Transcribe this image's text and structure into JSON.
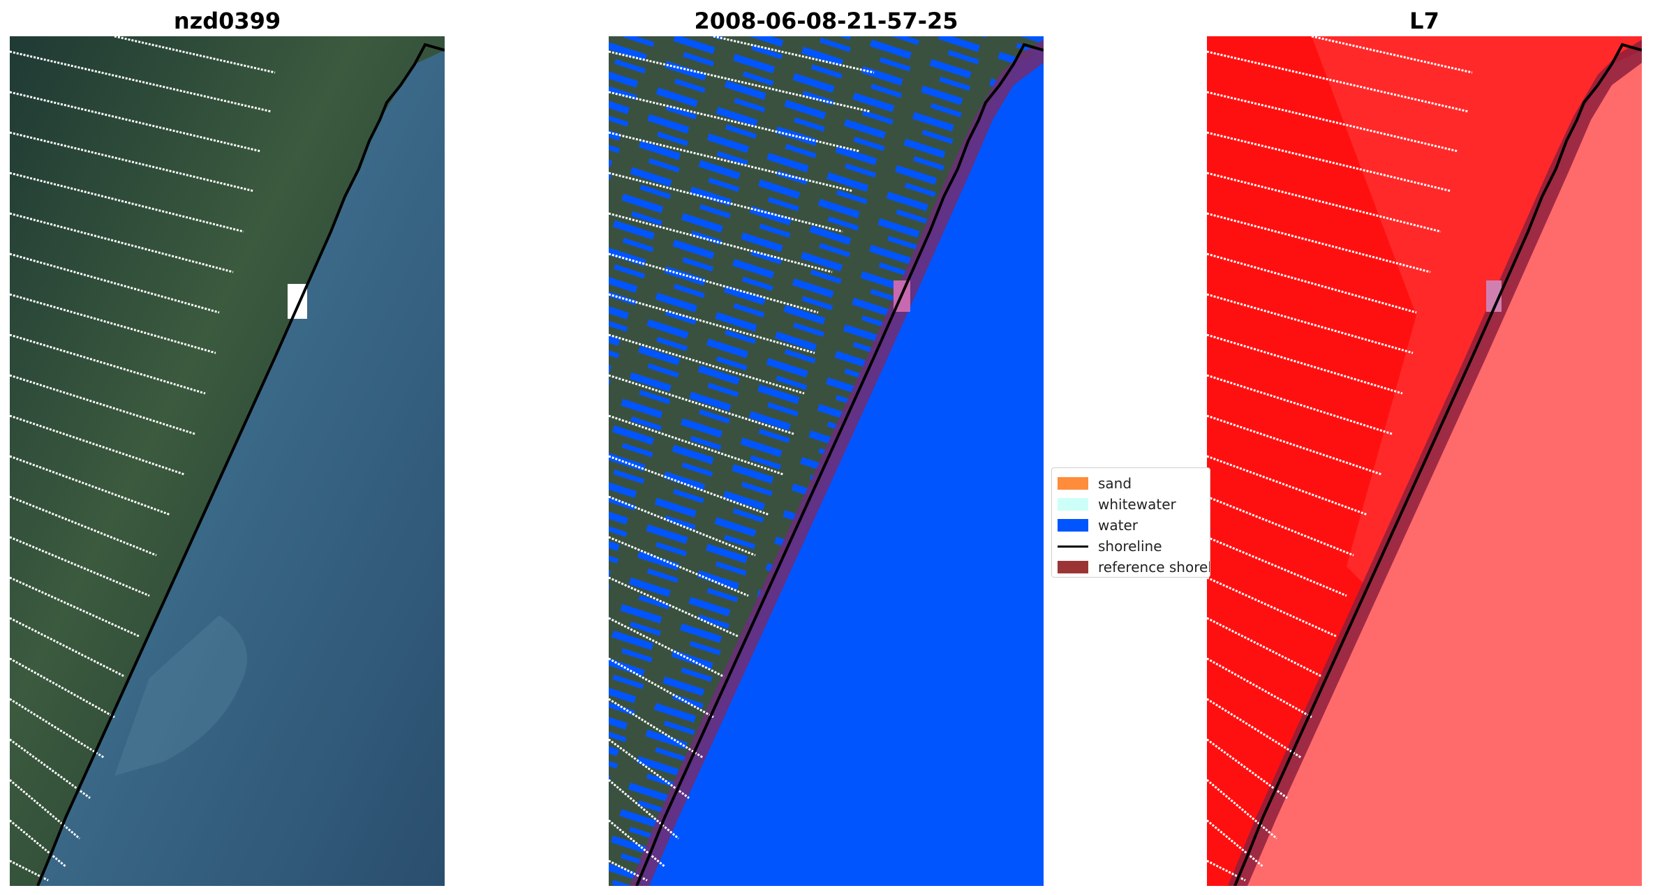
{
  "panels": [
    {
      "title": "nzd0399"
    },
    {
      "title": "2008-06-08-21-57-25"
    },
    {
      "title": "L7"
    }
  ],
  "legend": {
    "items": [
      {
        "label": "sand",
        "color": "#ff8c3a",
        "kind": "patch"
      },
      {
        "label": "whitewater",
        "color": "#ccfff8",
        "kind": "patch"
      },
      {
        "label": "water",
        "color": "#0055ff",
        "kind": "patch"
      },
      {
        "label": "shoreline",
        "color": "#000000",
        "kind": "line"
      },
      {
        "label": "reference shoreline buffer",
        "color": "#9b3535",
        "kind": "patch"
      }
    ]
  },
  "colors": {
    "land_rgb": "#2f4a38",
    "sea_rgb": "#3a6688",
    "water_class": "#0055ff",
    "buffer_class": "#6b2f78",
    "land_mask": "#ff1010",
    "sea_mask": "#ff6a6a"
  }
}
